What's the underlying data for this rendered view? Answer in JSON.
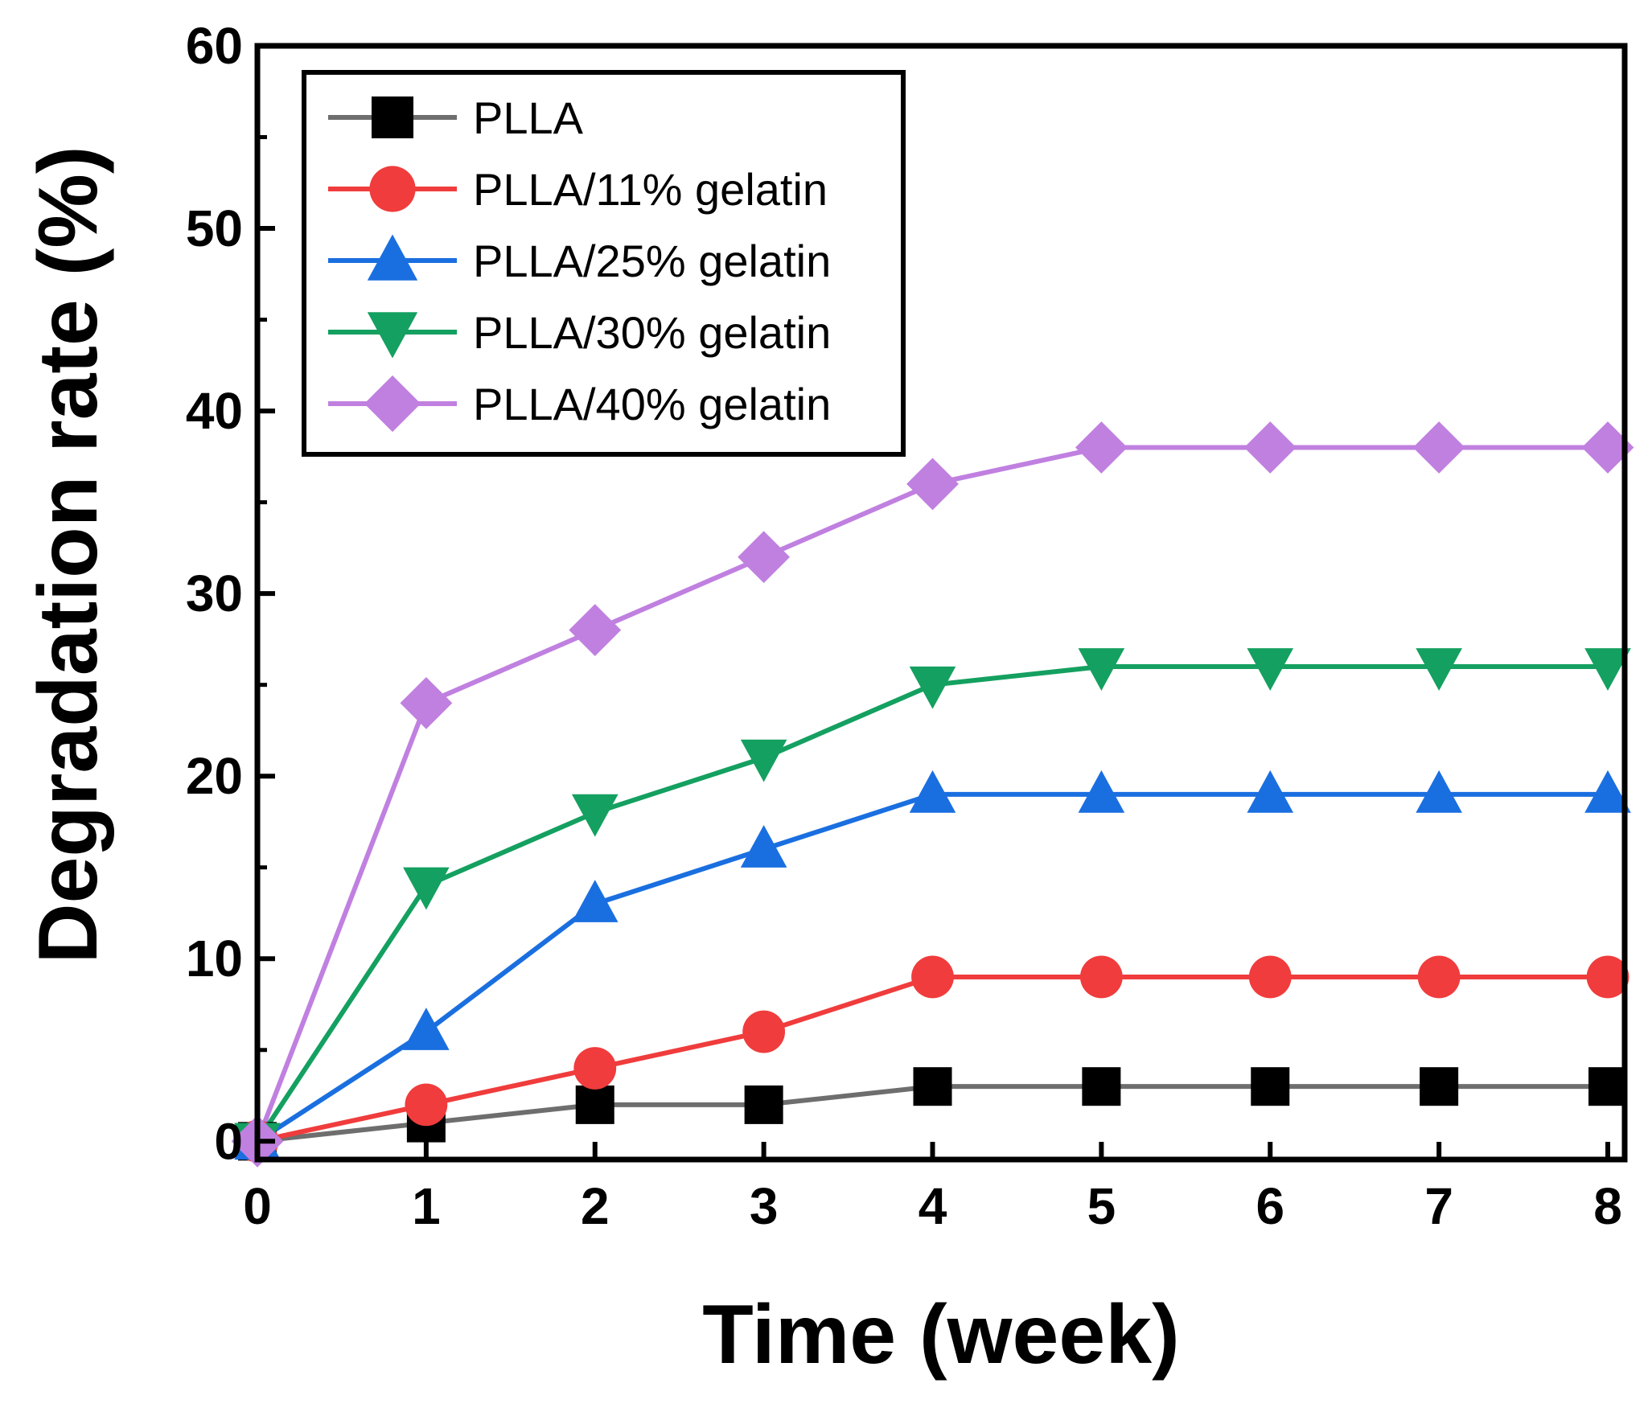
{
  "chart_data": {
    "type": "line",
    "title": "",
    "xlabel": "Time (week)",
    "ylabel": "Degradation rate (%)",
    "xlim": [
      0,
      8.1
    ],
    "ylim": [
      -1,
      60
    ],
    "xticks": [
      0,
      1,
      2,
      3,
      4,
      5,
      6,
      7,
      8
    ],
    "yticks": [
      0,
      10,
      20,
      30,
      40,
      50,
      60
    ],
    "grid": false,
    "legend_position": "top-left",
    "x": [
      0,
      1,
      2,
      3,
      4,
      5,
      6,
      7,
      8
    ],
    "series": [
      {
        "name": "PLLA",
        "color": "#6e6e6e",
        "marker_color": "#000000",
        "marker": "square",
        "values": [
          0,
          1,
          2,
          2,
          3,
          3,
          3,
          3,
          3
        ]
      },
      {
        "name": "PLLA/11% gelatin",
        "color": "#f03c3c",
        "marker_color": "#f03c3c",
        "marker": "circle",
        "values": [
          0,
          2,
          4,
          6,
          9,
          9,
          9,
          9,
          9
        ]
      },
      {
        "name": "PLLA/25% gelatin",
        "color": "#1a6fe0",
        "marker_color": "#1a6fe0",
        "marker": "triangle-up",
        "values": [
          0,
          6,
          13,
          16,
          19,
          19,
          19,
          19,
          19
        ]
      },
      {
        "name": "PLLA/30% gelatin",
        "color": "#14a060",
        "marker_color": "#14a060",
        "marker": "triangle-down",
        "values": [
          0,
          14,
          18,
          21,
          25,
          26,
          26,
          26,
          26
        ]
      },
      {
        "name": "PLLA/40% gelatin",
        "color": "#c080e0",
        "marker_color": "#c080e0",
        "marker": "diamond",
        "values": [
          0,
          24,
          28,
          32,
          36,
          38,
          38,
          38,
          38
        ]
      }
    ]
  }
}
